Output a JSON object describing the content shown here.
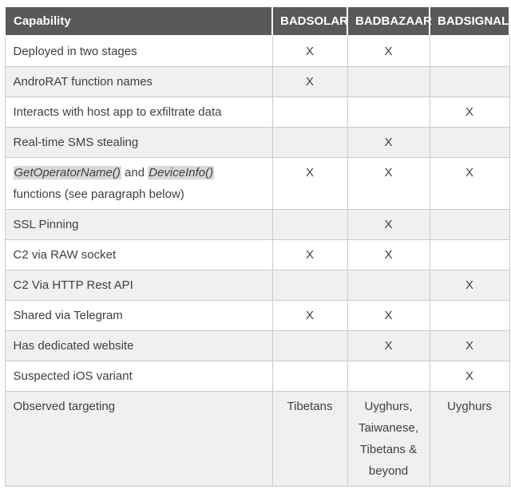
{
  "colors": {
    "header_bg": "#59595b",
    "header_text": "#ffffff",
    "body_text": "#404040",
    "alt_row_bg": "#f0f0f0",
    "border": "#cbcbcb",
    "code_highlight_bg": "#d9d9d9"
  },
  "chart_data": {
    "type": "table",
    "title": "Malware capability comparison",
    "columns": [
      "Capability",
      "BADSOLAR",
      "BADBAZAAR",
      "BADSIGNAL"
    ],
    "rows": [
      [
        "Deployed in two stages",
        "X",
        "X",
        ""
      ],
      [
        "AndroRAT function names",
        "X",
        "",
        ""
      ],
      [
        "Interacts with host app to exfiltrate data",
        "",
        "",
        "X"
      ],
      [
        "Real-time SMS stealing",
        "",
        "X",
        ""
      ],
      [
        "GetOperatorName() and DeviceInfo() functions (see paragraph below)",
        "X",
        "X",
        "X"
      ],
      [
        "SSL Pinning",
        "",
        "X",
        ""
      ],
      [
        "C2 via RAW socket",
        "X",
        "X",
        ""
      ],
      [
        "C2 Via HTTP Rest API",
        "",
        "",
        "X"
      ],
      [
        "Shared via Telegram",
        "X",
        "X",
        ""
      ],
      [
        "Has dedicated website",
        "",
        "X",
        "X"
      ],
      [
        "Suspected iOS variant",
        "",
        "",
        "X"
      ],
      [
        "Observed targeting",
        "Tibetans",
        "Uyghurs, Taiwanese, Tibetans & beyond",
        "Uyghurs"
      ]
    ]
  },
  "table": {
    "header": {
      "capability": "Capability",
      "columns": [
        "BADSOLAR",
        "BADBAZAAR",
        "BADSIGNAL"
      ]
    },
    "rows": [
      {
        "capability": "Deployed in two stages",
        "values": [
          "X",
          "X",
          ""
        ]
      },
      {
        "capability": "AndroRAT function names",
        "values": [
          "X",
          "",
          ""
        ]
      },
      {
        "capability": "Interacts with host app to exfiltrate data",
        "values": [
          "",
          "",
          "X"
        ]
      },
      {
        "capability": "Real-time SMS stealing",
        "values": [
          "",
          "X",
          ""
        ]
      },
      {
        "capability_segments": [
          {
            "text": "GetOperatorName()",
            "code": true
          },
          {
            "text": " and ",
            "code": false
          },
          {
            "text": "DeviceInfo()",
            "code": true
          },
          {
            "text": "functions (see paragraph below)",
            "code": false,
            "break_before": true
          }
        ],
        "values": [
          "X",
          "X",
          "X"
        ]
      },
      {
        "capability": "SSL Pinning",
        "values": [
          "",
          "X",
          ""
        ]
      },
      {
        "capability": "C2 via RAW socket",
        "values": [
          "X",
          "X",
          ""
        ]
      },
      {
        "capability": "C2 Via HTTP Rest API",
        "values": [
          "",
          "",
          "X"
        ]
      },
      {
        "capability": "Shared via Telegram",
        "values": [
          "X",
          "X",
          ""
        ]
      },
      {
        "capability": "Has dedicated website",
        "values": [
          "",
          "X",
          "X"
        ]
      },
      {
        "capability": "Suspected iOS variant",
        "values": [
          "",
          "",
          "X"
        ]
      },
      {
        "capability": "Observed targeting",
        "values": [
          "Tibetans",
          "Uyghurs, Taiwanese, Tibetans & beyond",
          "Uyghurs"
        ]
      }
    ]
  }
}
